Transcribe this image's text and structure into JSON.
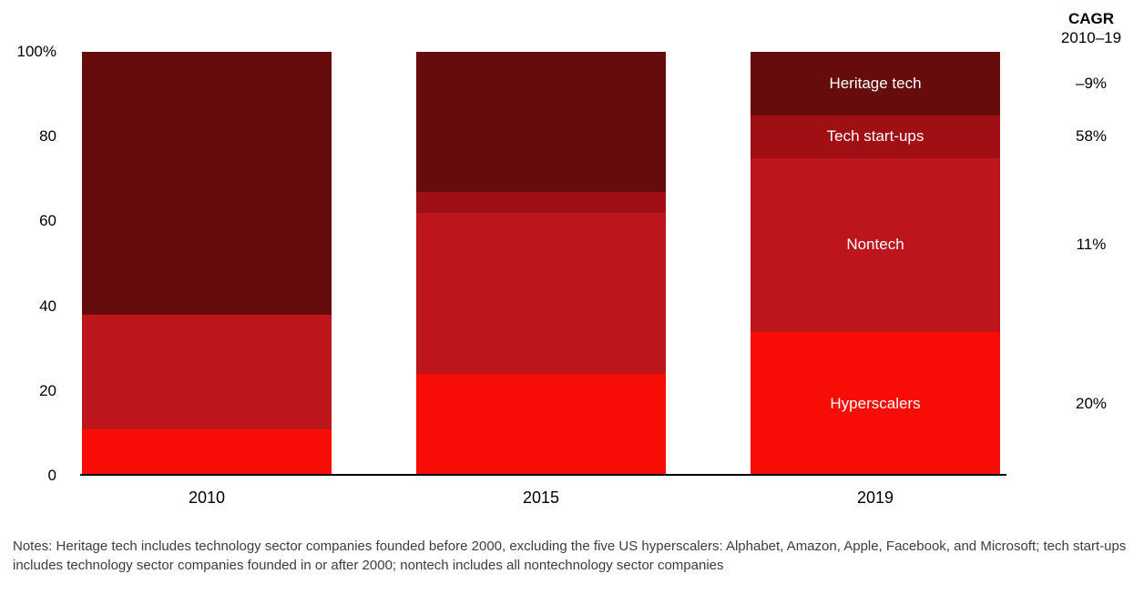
{
  "chart_data": {
    "type": "bar",
    "stacked": true,
    "title": "",
    "categories": [
      "2010",
      "2015",
      "2019"
    ],
    "series": [
      {
        "name": "Hyperscalers",
        "color": "#f80c06",
        "values": [
          11,
          24,
          34
        ],
        "cagr": "20%"
      },
      {
        "name": "Nontech",
        "color": "#bd151c",
        "values": [
          27,
          38,
          41
        ],
        "cagr": "11%"
      },
      {
        "name": "Tech start-ups",
        "color": "#a00f13",
        "values": [
          0,
          5,
          10
        ],
        "cagr": "58%"
      },
      {
        "name": "Heritage tech",
        "color": "#660c0c",
        "values": [
          62,
          33,
          15
        ],
        "cagr": "–9%"
      }
    ],
    "ylim": [
      0,
      100
    ],
    "yticks": [
      "100%",
      "80",
      "60",
      "40",
      "20",
      "0"
    ],
    "grid": false,
    "legend_position": "inside-last-bar"
  },
  "cagr_header": {
    "line1": "CAGR",
    "line2": "2010–19"
  },
  "notes": "Notes: Heritage tech includes technology sector companies founded before 2000, excluding the five US hyperscalers: Alphabet, Amazon, Apple, Facebook, and Microsoft; tech start-ups includes technology sector companies founded in or after 2000; nontech includes all nontechnology sector companies"
}
